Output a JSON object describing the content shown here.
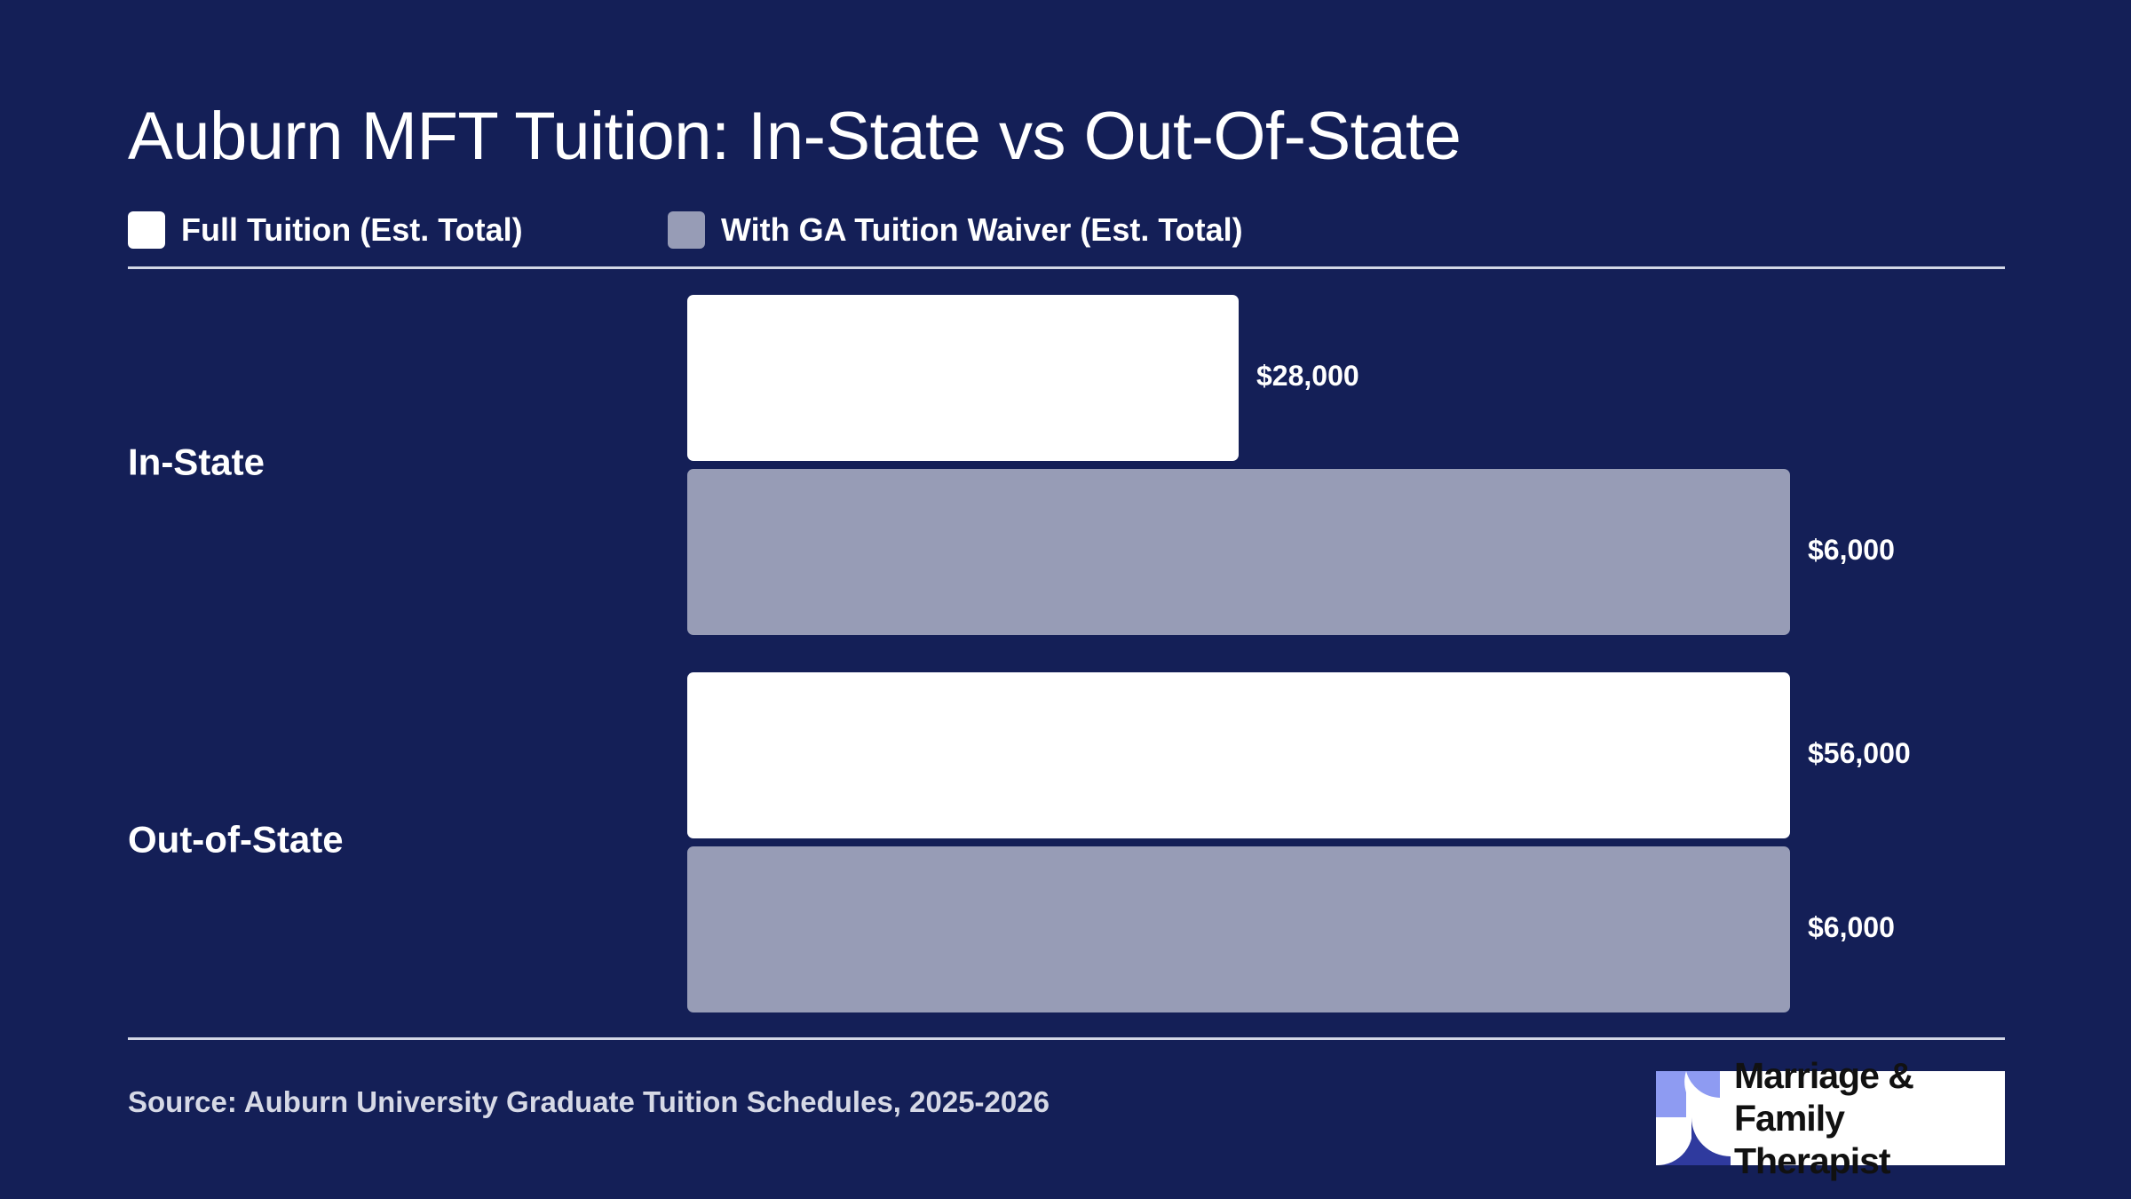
{
  "colors": {
    "background": "#141f57",
    "full_tuition": "#ffffff",
    "ga_waiver": "#979cb6"
  },
  "chart_data": {
    "type": "bar",
    "orientation": "horizontal",
    "title": "Auburn MFT Tuition: In-State vs Out-Of-State",
    "categories": [
      "In-State",
      "Out-of-State"
    ],
    "series": [
      {
        "name": "Full Tuition (Est. Total)",
        "color": "#ffffff",
        "values": [
          28000,
          56000
        ],
        "labels": [
          "$28,000",
          "$56,000"
        ]
      },
      {
        "name": "With GA Tuition Waiver (Est. Total)",
        "color": "#979cb6",
        "values": [
          6000,
          6000
        ],
        "labels": [
          "$6,000",
          "$6,000"
        ]
      }
    ],
    "legend": "top-left",
    "grid": false,
    "source": "Source: Auburn University Graduate Tuition Schedules, 2025-2026"
  },
  "logo": {
    "text_line1": "Marriage & Family",
    "text_line2": "Therapist"
  }
}
